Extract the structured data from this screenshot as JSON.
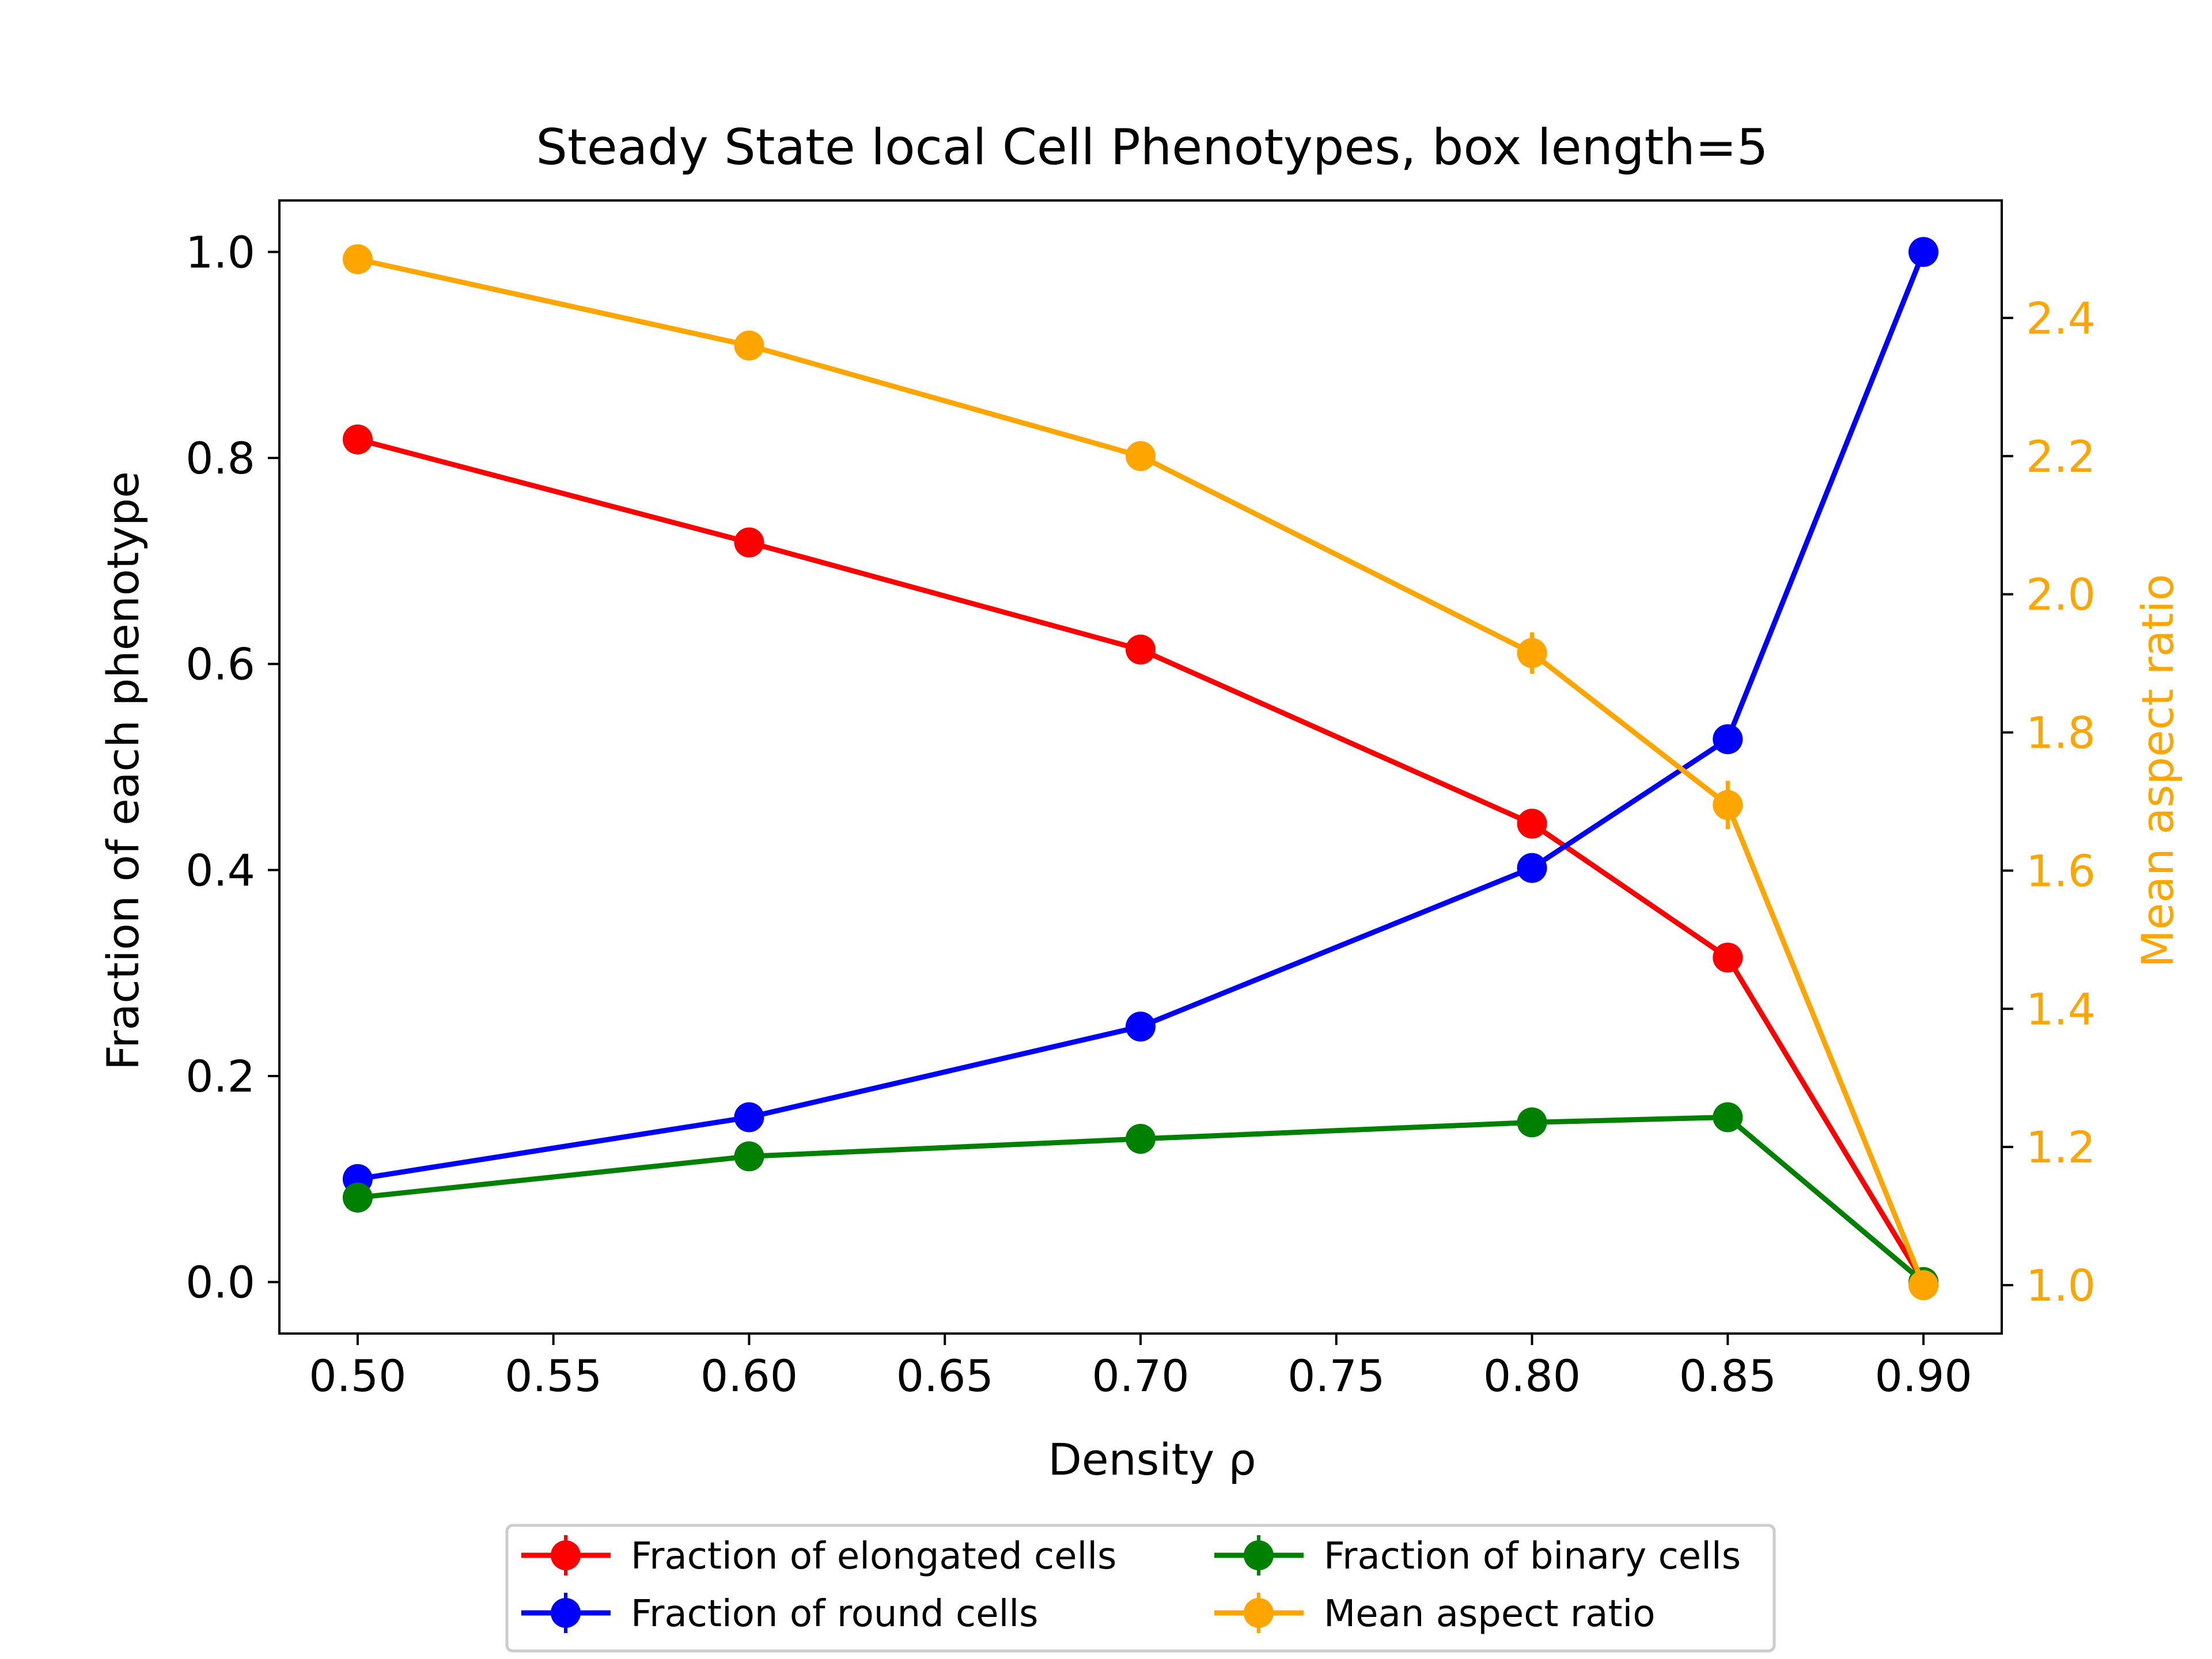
{
  "chart_data": {
    "type": "line",
    "title": "Steady State local Cell Phenotypes, box length=5",
    "xlabel": "Density ρ",
    "ylabel": "Fraction of each phenotype",
    "y2label": "Mean aspect ratio",
    "xlim": [
      0.48,
      0.92
    ],
    "ylim": [
      -0.05,
      1.05
    ],
    "y2lim": [
      0.93,
      2.57
    ],
    "xticks": [
      0.5,
      0.55,
      0.6,
      0.65,
      0.7,
      0.75,
      0.8,
      0.85,
      0.9
    ],
    "xtick_labels": [
      "0.50",
      "0.55",
      "0.60",
      "0.65",
      "0.70",
      "0.75",
      "0.80",
      "0.85",
      "0.90"
    ],
    "yticks": [
      0.0,
      0.2,
      0.4,
      0.6,
      0.8,
      1.0
    ],
    "ytick_labels": [
      "0.0",
      "0.2",
      "0.4",
      "0.6",
      "0.8",
      "1.0"
    ],
    "y2ticks": [
      1.0,
      1.2,
      1.4,
      1.6,
      1.8,
      2.0,
      2.2,
      2.4
    ],
    "y2tick_labels": [
      "1.0",
      "1.2",
      "1.4",
      "1.6",
      "1.8",
      "2.0",
      "2.2",
      "2.4"
    ],
    "x": [
      0.5,
      0.6,
      0.7,
      0.8,
      0.85,
      0.9
    ],
    "series": [
      {
        "name": "Fraction of elongated cells",
        "axis": "left",
        "color": "#ff0000",
        "values": [
          0.818,
          0.718,
          0.614,
          0.445,
          0.315,
          0.0
        ],
        "errors": [
          0.004,
          0.004,
          0.005,
          0.012,
          0.013,
          0.0
        ]
      },
      {
        "name": "Fraction of round cells",
        "axis": "left",
        "color": "#0000ff",
        "values": [
          0.1,
          0.16,
          0.248,
          0.402,
          0.527,
          1.0
        ],
        "errors": [
          0.003,
          0.004,
          0.005,
          0.009,
          0.014,
          0.0
        ]
      },
      {
        "name": "Fraction of binary cells",
        "axis": "left",
        "color": "#008000",
        "values": [
          0.082,
          0.122,
          0.139,
          0.155,
          0.16,
          0.0
        ],
        "errors": [
          0.002,
          0.003,
          0.003,
          0.003,
          0.003,
          0.0
        ]
      },
      {
        "name": "Mean aspect ratio",
        "axis": "right",
        "color": "#ffa500",
        "values": [
          2.485,
          2.36,
          2.2,
          1.915,
          1.695,
          1.0
        ],
        "errors": [
          0.01,
          0.01,
          0.01,
          0.03,
          0.035,
          0.0
        ]
      }
    ],
    "legend": {
      "placement": "below",
      "columns": 2,
      "entries": [
        "Fraction of elongated cells",
        "Fraction of binary cells",
        "Fraction of round cells",
        "Mean aspect ratio"
      ]
    },
    "grid": false
  }
}
